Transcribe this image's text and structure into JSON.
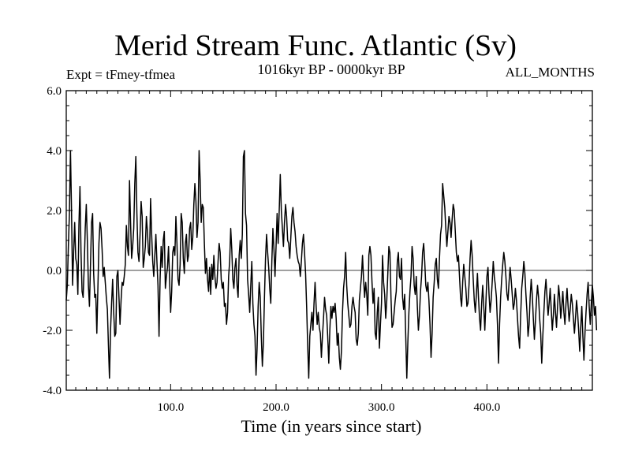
{
  "chart_data": {
    "type": "line",
    "title": "Merid Stream Func. Atlantic (Sv)",
    "subtitle": "1016kyr BP - 0000kyr BP",
    "annotation_left": "Expt = tFmey-tfmea",
    "annotation_right": "ALL_MONTHS",
    "xlabel": "Time (in years since start)",
    "ylabel": "",
    "xlim": [
      1,
      500
    ],
    "ylim": [
      -4.0,
      6.0
    ],
    "x_ticks": [
      100,
      200,
      300,
      400
    ],
    "x_tick_labels": [
      "100.0",
      "200.0",
      "300.0",
      "400.0"
    ],
    "y_ticks": [
      -4,
      -2,
      0,
      2,
      4,
      6
    ],
    "y_tick_labels": [
      "-4.0",
      "-2.0",
      "0.0",
      "2.0",
      "4.0",
      "6.0"
    ],
    "reference_line": 0.0,
    "series": [
      {
        "name": "Merid Stream Func. Atlantic",
        "x_start": 1,
        "x_step": 1,
        "values": [
          -1.0,
          -0.5,
          0.8,
          1.9,
          4.0,
          2.0,
          -0.5,
          0.6,
          1.6,
          0.4,
          0.2,
          -0.8,
          1.5,
          2.8,
          0.6,
          -0.7,
          -0.9,
          0.1,
          1.4,
          2.2,
          1.0,
          -0.5,
          -1.2,
          0.2,
          1.6,
          1.9,
          -0.1,
          -0.9,
          -0.8,
          -2.1,
          -0.6,
          0.9,
          1.6,
          1.4,
          0.7,
          -0.2,
          0.1,
          -0.4,
          -0.9,
          -1.3,
          -2.5,
          -3.6,
          -2.0,
          -1.1,
          -0.3,
          -1.4,
          -2.2,
          -2.1,
          -0.2,
          0.0,
          -0.9,
          -1.8,
          -1.0,
          -0.4,
          -0.5,
          -0.2,
          0.2,
          1.5,
          0.8,
          0.5,
          3.0,
          1.6,
          0.4,
          0.8,
          1.4,
          2.9,
          3.8,
          1.9,
          0.6,
          0.3,
          1.2,
          2.3,
          1.8,
          0.1,
          0.4,
          0.8,
          1.8,
          1.3,
          0.6,
          0.5,
          2.4,
          1.2,
          0.3,
          -0.2,
          0.5,
          1.2,
          0.3,
          -0.5,
          -2.2,
          -0.3,
          0.8,
          0.1,
          1.0,
          1.3,
          -0.6,
          -0.2,
          0.1,
          0.8,
          -0.3,
          -1.4,
          -0.7,
          0.6,
          0.8,
          0.5,
          1.8,
          0.9,
          -0.3,
          -0.5,
          0.2,
          1.9,
          1.6,
          0.4,
          -0.1,
          0.9,
          1.2,
          0.3,
          0.5,
          1.4,
          1.6,
          0.7,
          1.1,
          2.2,
          2.9,
          2.3,
          1.1,
          1.6,
          4.0,
          3.0,
          1.6,
          2.2,
          2.1,
          0.9,
          -0.1,
          0.4,
          -0.3,
          -0.7,
          0.1,
          -0.8,
          0.2,
          -0.3,
          0.5,
          -0.2,
          -0.6,
          -0.4,
          0.3,
          0.9,
          0.6,
          -0.3,
          -0.6,
          -0.4,
          -1.2,
          -1.1,
          -1.8,
          -1.4,
          -0.2,
          0.3,
          1.4,
          0.7,
          -0.3,
          -0.6,
          0.1,
          0.4,
          -0.5,
          -0.9,
          0.5,
          1.0,
          0.4,
          1.2,
          3.8,
          4.0,
          1.9,
          1.5,
          -0.3,
          -0.8,
          -1.4,
          -0.5,
          0.3,
          -1.1,
          -1.8,
          -2.2,
          -3.5,
          -2.6,
          -1.2,
          -0.4,
          -0.9,
          -2.2,
          -3.2,
          -2.4,
          -0.9,
          0.4,
          1.2,
          0.6,
          0.1,
          -0.6,
          -1.1,
          0.3,
          1.4,
          0.7,
          -0.2,
          0.8,
          1.9,
          0.9,
          2.0,
          3.2,
          2.0,
          1.4,
          0.8,
          1.6,
          2.2,
          1.8,
          1.0,
          0.9,
          0.4,
          1.1,
          1.8,
          2.1,
          1.6,
          1.3,
          0.8,
          0.5,
          0.3,
          0.2,
          -0.2,
          0.3,
          0.9,
          1.2,
          0.6,
          -0.1,
          -1.2,
          -2.5,
          -3.6,
          -2.2,
          -1.8,
          -1.4,
          -2.0,
          -1.1,
          -0.4,
          -1.2,
          -1.8,
          -1.4,
          -1.9,
          -2.1,
          -2.9,
          -2.2,
          -1.6,
          -0.9,
          -1.3,
          -1.5,
          -2.2,
          -3.1,
          -2.0,
          -1.2,
          -1.6,
          -1.2,
          -1.4,
          -1.1,
          -1.6,
          -2.5,
          -2.1,
          -2.9,
          -3.3,
          -2.7,
          -1.4,
          -0.6,
          -0.2,
          0.6,
          -0.5,
          -1.1,
          -1.5,
          -1.9,
          -1.8,
          -1.2,
          -0.9,
          -1.2,
          -1.4,
          -2.3,
          -2.5,
          -2.1,
          -1.0,
          -0.6,
          -0.2,
          0.5,
          -0.3,
          -0.9,
          -0.4,
          -0.8,
          -1.5,
          0.5,
          0.8,
          0.5,
          -0.4,
          -1.1,
          -0.6,
          -2.1,
          -2.3,
          -1.4,
          -0.9,
          -2.6,
          -1.8,
          -1.1,
          0.5,
          -0.4,
          -0.8,
          -1.6,
          -1.0,
          -0.1,
          0.8,
          0.6,
          -0.9,
          -1.9,
          -1.8,
          -1.4,
          -1.0,
          -0.7,
          0.3,
          0.6,
          -0.2,
          -0.3,
          0.4,
          -0.9,
          -1.3,
          -0.8,
          -2.2,
          -3.6,
          -2.4,
          -1.4,
          -0.7,
          -0.2,
          0.8,
          0.4,
          -0.5,
          -0.8,
          -0.2,
          -1.2,
          -2.0,
          -1.5,
          -0.7,
          -0.2,
          0.6,
          0.9,
          0.3,
          -0.5,
          -0.7,
          -0.4,
          -1.0,
          -1.8,
          -2.9,
          -2.1,
          -0.9,
          -0.4,
          0.2,
          0.4,
          -0.3,
          -0.6,
          0.4,
          1.2,
          1.5,
          2.9,
          2.5,
          2.1,
          1.4,
          0.8,
          1.3,
          1.8,
          1.6,
          1.1,
          1.7,
          2.2,
          2.0,
          1.3,
          0.6,
          0.3,
          0.5,
          -0.2,
          -0.9,
          -1.2,
          -0.4,
          0.2,
          -0.2,
          -0.6,
          -1.2,
          -1.1,
          -0.5,
          0.4,
          1.0,
          0.5,
          -0.3,
          -1.0,
          -1.4,
          -0.8,
          -0.1,
          -0.9,
          -1.6,
          -2.0,
          -1.1,
          -0.5,
          -1.2,
          -2.0,
          -1.1,
          -0.2,
          0.1,
          -0.8,
          -1.4,
          -1.0,
          -0.4,
          0.3,
          -0.2,
          -0.5,
          -0.9,
          -1.8,
          -3.1,
          -1.8,
          -0.9,
          -0.3,
          0.2,
          0.6,
          0.3,
          -0.2,
          -0.8,
          -1.0,
          -0.4,
          0.1,
          -0.3,
          -0.8,
          -1.3,
          -1.1,
          -0.6,
          -1.0,
          -1.6,
          -2.2,
          -2.6,
          -1.5,
          -0.6,
          -0.2,
          0.3,
          -0.1,
          -0.8,
          -1.4,
          -2.2,
          -1.8,
          -0.9,
          -0.3,
          -0.8,
          -1.6,
          -2.3,
          -1.7,
          -1.0,
          -0.5,
          -0.9,
          -1.6,
          -2.1,
          -3.1,
          -2.2,
          -1.4,
          -0.7,
          -0.3,
          -0.9,
          -1.5,
          -1.1,
          -0.6,
          -1.3,
          -2.0,
          -1.5,
          -0.8,
          -1.4,
          -1.9,
          -1.2,
          -0.5,
          -0.9,
          -1.6,
          -1.2,
          -0.7,
          -1.4,
          -1.8,
          -1.1,
          -0.6,
          -1.2,
          -1.7,
          -1.3,
          -0.8,
          -1.1,
          -1.6,
          -2.1,
          -1.6,
          -1.0,
          -1.4,
          -2.0,
          -2.7,
          -1.9,
          -1.2,
          -2.2,
          -3.0,
          -2.1,
          -1.4,
          -0.8,
          -0.4,
          -1.2,
          -1.8,
          -1.1,
          -0.5,
          -0.9,
          -1.5,
          -1.2,
          -2.0
        ]
      }
    ]
  }
}
